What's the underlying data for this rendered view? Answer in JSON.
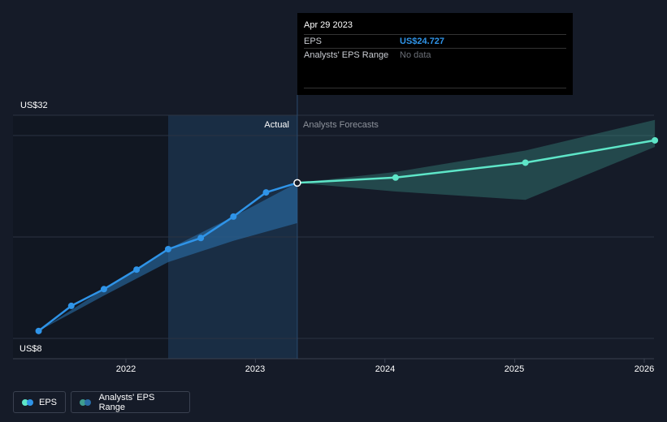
{
  "chart_data": {
    "type": "line",
    "y_axis_labels": {
      "top": "US$32",
      "bottom": "US$8"
    },
    "ylim": [
      8,
      32
    ],
    "x_ticks": [
      "2022",
      "2023",
      "2024",
      "2025",
      "2026"
    ],
    "section_labels": {
      "actual": "Actual",
      "forecast": "Analysts Forecasts"
    },
    "series": [
      {
        "name": "EPS",
        "kind": "actual",
        "color": "#2f94e8",
        "points": [
          {
            "date": "2021-04-30",
            "value": 8.8
          },
          {
            "date": "2021-07-31",
            "value": 11.5
          },
          {
            "date": "2021-10-31",
            "value": 13.3
          },
          {
            "date": "2022-01-31",
            "value": 15.4
          },
          {
            "date": "2022-04-30",
            "value": 17.6
          },
          {
            "date": "2022-07-31",
            "value": 18.8
          },
          {
            "date": "2022-10-31",
            "value": 21.1
          },
          {
            "date": "2023-01-31",
            "value": 23.7
          },
          {
            "date": "2023-04-29",
            "value": 24.727
          }
        ]
      },
      {
        "name": "EPS",
        "kind": "forecast",
        "color": "#5ee6c8",
        "points": [
          {
            "date": "2023-04-29",
            "value": 24.727
          },
          {
            "date": "2024-01-31",
            "value": 25.3
          },
          {
            "date": "2025-01-31",
            "value": 26.9
          },
          {
            "date": "2026-01-31",
            "value": 29.3
          }
        ]
      }
    ],
    "range_actual": [
      {
        "date": "2021-04-30",
        "low": 8.8,
        "high": 8.8
      },
      {
        "date": "2021-10-31",
        "low": 12.6,
        "high": 13.3
      },
      {
        "date": "2022-04-30",
        "low": 16.2,
        "high": 17.6
      },
      {
        "date": "2022-10-31",
        "low": 18.5,
        "high": 21.1
      },
      {
        "date": "2023-04-29",
        "low": 20.4,
        "high": 24.727
      }
    ],
    "range_forecast": [
      {
        "date": "2023-04-29",
        "low": 24.727,
        "high": 24.727
      },
      {
        "date": "2024-01-31",
        "low": 23.8,
        "high": 25.9
      },
      {
        "date": "2025-01-31",
        "low": 22.9,
        "high": 28.2
      },
      {
        "date": "2026-01-31",
        "low": 28.6,
        "high": 31.5
      }
    ],
    "highlight_date": "2023-04-29",
    "grid": true,
    "legend_position": "bottom-left"
  },
  "tooltip": {
    "date": "Apr 29 2023",
    "eps_label": "EPS",
    "eps_value": "US$24.727",
    "range_label": "Analysts' EPS Range",
    "range_value": "No data"
  },
  "legend": {
    "eps_label": "EPS",
    "range_label": "Analysts' EPS Range"
  },
  "colors": {
    "background": "#151b28",
    "eps_actual": "#2f94e8",
    "eps_forecast": "#5ee6c8",
    "range_actual": "#2a6ea8",
    "range_forecast": "#3f9e90"
  }
}
